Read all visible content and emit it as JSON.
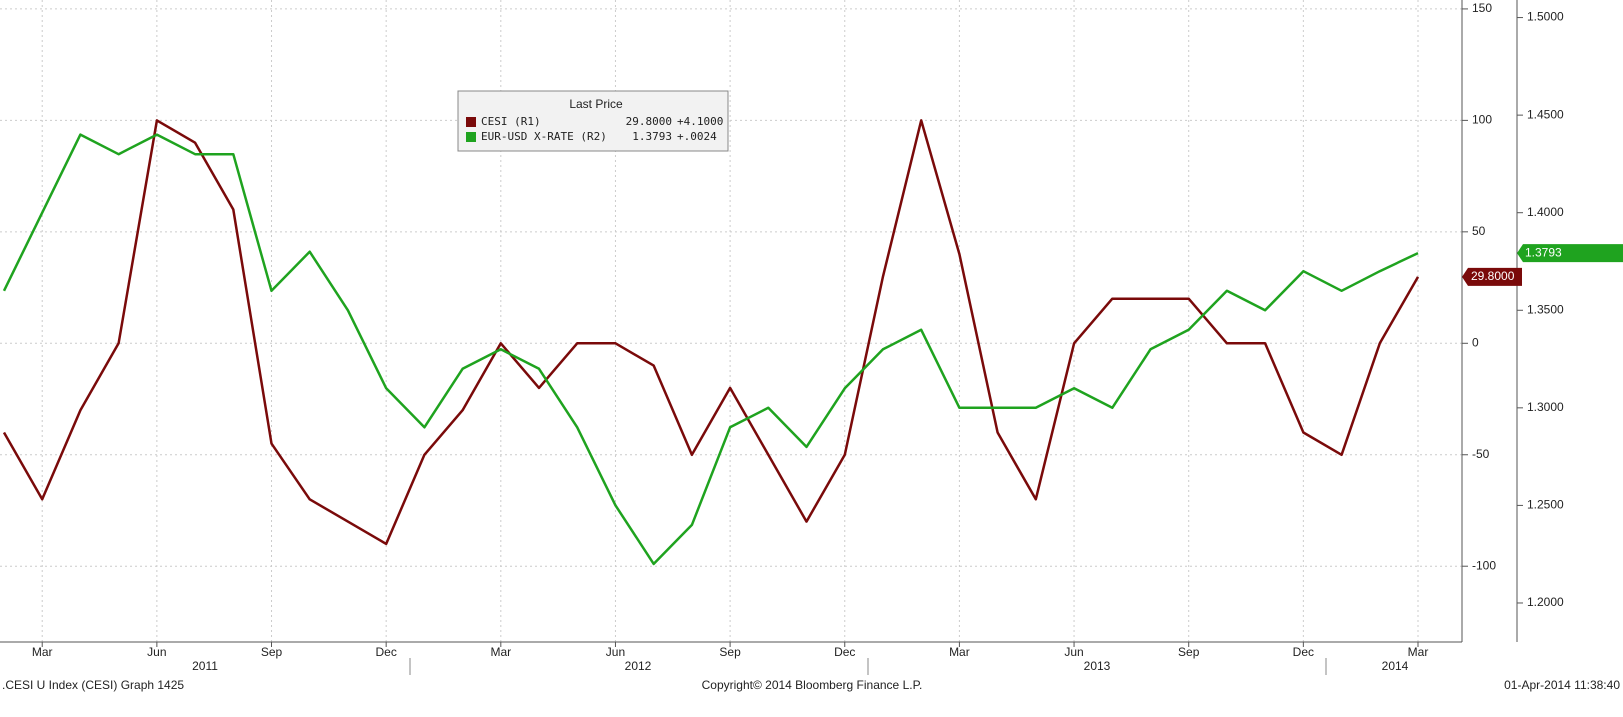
{
  "chart_data": {
    "type": "line",
    "x": [
      "2011-02",
      "2011-03",
      "2011-04",
      "2011-05",
      "2011-06",
      "2011-07",
      "2011-08",
      "2011-09",
      "2011-10",
      "2011-11",
      "2011-12",
      "2012-01",
      "2012-02",
      "2012-03",
      "2012-04",
      "2012-05",
      "2012-06",
      "2012-07",
      "2012-08",
      "2012-09",
      "2012-10",
      "2012-11",
      "2012-12",
      "2013-01",
      "2013-02",
      "2013-03",
      "2013-04",
      "2013-05",
      "2013-06",
      "2013-07",
      "2013-08",
      "2013-09",
      "2013-10",
      "2013-11",
      "2013-12",
      "2014-01",
      "2014-02",
      "2014-03"
    ],
    "series": [
      {
        "name": "CESI  (R1)",
        "color": "#7a0a0a",
        "axis": "y",
        "last_label": "29.8000",
        "change": "+4.1000",
        "values": [
          -40,
          -70,
          -30,
          0,
          100,
          90,
          60,
          -45,
          -70,
          -80,
          -90,
          -50,
          -30,
          0,
          -20,
          0,
          0,
          -10,
          -50,
          -20,
          -50,
          -80,
          -50,
          30,
          100,
          40,
          -40,
          -70,
          0,
          20,
          20,
          20,
          0,
          0,
          -40,
          -50,
          0,
          29.8
        ]
      },
      {
        "name": "EUR-USD X-RATE  (R2)",
        "color": "#1fa31f",
        "axis": "y2",
        "last_label": "1.3793",
        "change": "+.0024",
        "values": [
          1.36,
          1.4,
          1.44,
          1.43,
          1.44,
          1.43,
          1.43,
          1.36,
          1.38,
          1.35,
          1.31,
          1.29,
          1.32,
          1.33,
          1.32,
          1.29,
          1.25,
          1.22,
          1.24,
          1.29,
          1.3,
          1.28,
          1.31,
          1.33,
          1.34,
          1.3,
          1.3,
          1.3,
          1.31,
          1.3,
          1.33,
          1.34,
          1.36,
          1.35,
          1.37,
          1.36,
          1.37,
          1.3793
        ]
      }
    ],
    "legend_title": "Last Price",
    "ylim": [
      -134,
      154
    ],
    "yticks": [
      -100,
      -50,
      0,
      50,
      100,
      150
    ],
    "y2lim": [
      1.18,
      1.509
    ],
    "y2ticks": [
      {
        "value": 1.2,
        "label": "1.2000"
      },
      {
        "value": 1.25,
        "label": "1.2500"
      },
      {
        "value": 1.3,
        "label": "1.3000"
      },
      {
        "value": 1.35,
        "label": "1.3500"
      },
      {
        "value": 1.4,
        "label": "1.4000"
      },
      {
        "value": 1.45,
        "label": "1.4500"
      },
      {
        "value": 1.5,
        "label": "1.5000"
      }
    ],
    "xticks": [
      {
        "value": "2011-03",
        "label": "Mar"
      },
      {
        "value": "2011-06",
        "label": "Jun"
      },
      {
        "value": "2011-09",
        "label": "Sep"
      },
      {
        "value": "2011-12",
        "label": "Dec"
      },
      {
        "value": "2012-03",
        "label": "Mar"
      },
      {
        "value": "2012-06",
        "label": "Jun"
      },
      {
        "value": "2012-09",
        "label": "Sep"
      },
      {
        "value": "2012-12",
        "label": "Dec"
      },
      {
        "value": "2013-03",
        "label": "Mar"
      },
      {
        "value": "2013-06",
        "label": "Jun"
      },
      {
        "value": "2013-09",
        "label": "Sep"
      },
      {
        "value": "2013-12",
        "label": "Dec"
      },
      {
        "value": "2014-03",
        "label": "Mar"
      }
    ],
    "year_labels": [
      "2011",
      "2012",
      "2013",
      "2014"
    ],
    "grid": true,
    "footer_left": ".CESI U Index (CESI) Graph 1425",
    "footer_center": "Copyright© 2014 Bloomberg Finance L.P.",
    "footer_right": "01-Apr-2014 11:38:40"
  }
}
